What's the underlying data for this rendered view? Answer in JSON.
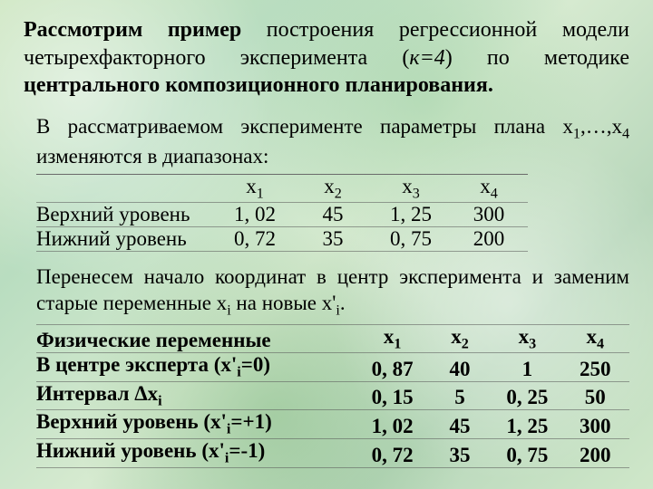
{
  "title": {
    "t1_bold": "Рассмотрим пример",
    "t2": " построения регрессионной модели четырехфакторного эксперимента (",
    "t3_italic": "к=4",
    "t4": ") по методике ",
    "t5_bold": "центрального композиционного планирования."
  },
  "para1": {
    "pre": "В рассматриваемом эксперименте параметры плана x",
    "s1": "1",
    "mid": ",…,x",
    "s4": "4",
    "post": " изменяются в диапазонах:"
  },
  "table1": {
    "headers": {
      "h1": "x",
      "h1s": "1",
      "h2": "x",
      "h2s": "2",
      "h3": "x",
      "h3s": "3",
      "h4": "x",
      "h4s": "4"
    },
    "rows": [
      {
        "label": "Верхний уровень",
        "v": [
          "1, 02",
          "45",
          "1, 25",
          "300"
        ]
      },
      {
        "label": "Нижний уровень",
        "v": [
          "0, 72",
          "35",
          "0, 75",
          "200"
        ]
      }
    ]
  },
  "para2": {
    "t1": "Перенесем начало координат в центр эксперимента и заменим старые переменные x",
    "s1": "i",
    "t2": " на новые x'",
    "s2": "i",
    "t3": "."
  },
  "table2": {
    "headers": {
      "h1": "x",
      "h1s": "1",
      "h2": "x",
      "h2s": "2",
      "h3": "x",
      "h3s": "3",
      "h4": "x",
      "h4s": "4"
    },
    "rows": [
      {
        "label": "Физические переменные",
        "v": [
          "x1h",
          "x2h",
          "x3h",
          "x4h"
        ],
        "is_header": true
      },
      {
        "label": "В центре эксперта (x'_i=0)",
        "v": [
          "0, 87",
          "40",
          "1",
          "250"
        ]
      },
      {
        "label": "Интервал Δx_i",
        "v": [
          "0, 15",
          "5",
          "0, 25",
          "50"
        ]
      },
      {
        "label": "Верхний уровень (x'_i=+1)",
        "v": [
          "1, 02",
          "45",
          "1, 25",
          "300"
        ]
      },
      {
        "label": "Нижний уровень (x'_i=-1)",
        "v": [
          "0, 72",
          "35",
          "0, 75",
          "200"
        ]
      }
    ],
    "labels": {
      "r0": "Физические переменные",
      "r1a": "В центре эксперта (x'",
      "r1s": "i",
      "r1b": "=0)",
      "r2a": "Интервал Δx",
      "r2s": "i",
      "r3a": "Верхний уровень (x'",
      "r3s": "i",
      "r3b": "=+1)",
      "r4a": "Нижний уровень (x'",
      "r4s": "i",
      "r4b": "=-1)"
    },
    "vals": {
      "r1": [
        "0, 87",
        "40",
        "1",
        "250"
      ],
      "r2": [
        "0, 15",
        "5",
        "0, 25",
        "50"
      ],
      "r3": [
        "1, 02",
        "45",
        "1, 25",
        "300"
      ],
      "r4": [
        "0, 72",
        "35",
        "0, 75",
        "200"
      ]
    }
  },
  "style": {
    "font_family": "Times New Roman",
    "title_fontsize_pt": 18,
    "body_fontsize_pt": 17,
    "text_color": "#000000",
    "grid_color": "rgba(90,90,90,0.55)",
    "background_palette": [
      "#c7e3b9",
      "#b9ddc0",
      "#d6ead0",
      "#b8d7bb",
      "#cfe7c9"
    ]
  }
}
